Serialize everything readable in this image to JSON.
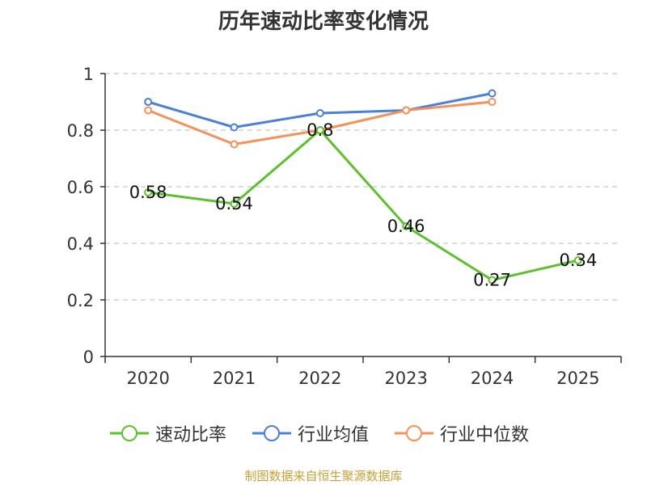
{
  "chart_data": {
    "type": "line",
    "title": "历年速动比率变化情况",
    "categories": [
      "2020",
      "2021",
      "2022",
      "2023",
      "2024",
      "2025"
    ],
    "ylim": [
      0,
      1
    ],
    "yticks": [
      "0",
      "0.2",
      "0.4",
      "0.6",
      "0.8",
      "1"
    ],
    "ytick_values": [
      0,
      0.2,
      0.4,
      0.6,
      0.8,
      1
    ],
    "grid": true,
    "legend_position": "bottom",
    "series": [
      {
        "name": "速动比率",
        "color": "#5cc12b",
        "values": [
          0.58,
          0.54,
          0.8,
          0.46,
          0.27,
          0.34
        ],
        "labels": [
          "0.58",
          "0.54",
          "0.8",
          "0.46",
          "0.27",
          "0.34"
        ]
      },
      {
        "name": "行业均值",
        "color": "#4a80dc",
        "values": [
          0.9,
          0.81,
          0.86,
          0.87,
          0.93,
          null
        ]
      },
      {
        "name": "行业中位数",
        "color": "#f5915a",
        "values": [
          0.87,
          0.75,
          0.8,
          0.87,
          0.9,
          null
        ]
      }
    ]
  },
  "footer": {
    "source": "制图数据来自恒生聚源数据库"
  }
}
